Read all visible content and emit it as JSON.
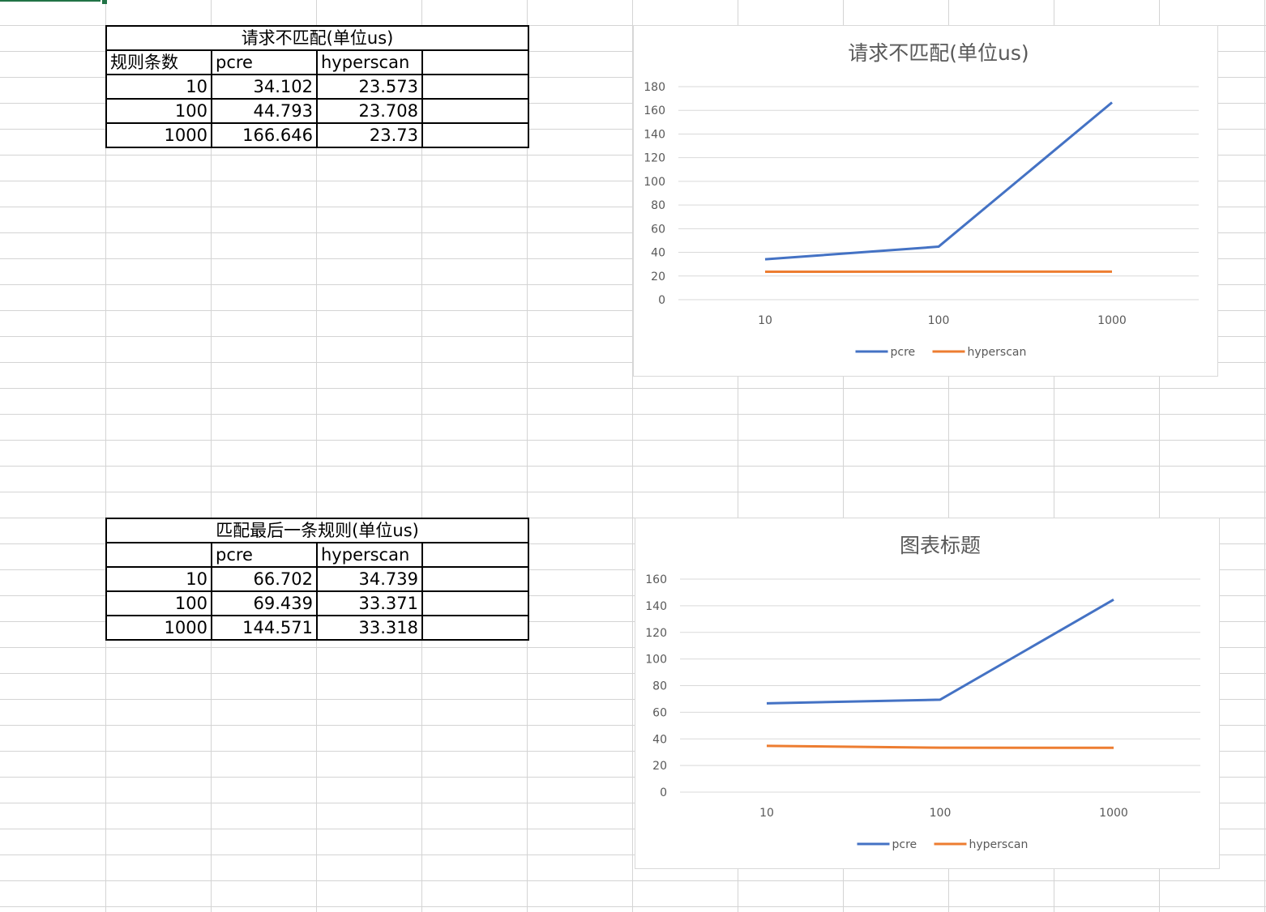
{
  "tables": [
    {
      "title": "请求不匹配(单位us)",
      "header": [
        "规则条数",
        "pcre",
        "hyperscan",
        ""
      ],
      "rows": [
        [
          "10",
          "34.102",
          "23.573",
          ""
        ],
        [
          "100",
          "44.793",
          "23.708",
          ""
        ],
        [
          "1000",
          "166.646",
          "23.73",
          ""
        ]
      ]
    },
    {
      "title": "匹配最后一条规则(单位us)",
      "header": [
        "",
        "pcre",
        "hyperscan",
        ""
      ],
      "rows": [
        [
          "10",
          "66.702",
          "34.739",
          ""
        ],
        [
          "100",
          "69.439",
          "33.371",
          ""
        ],
        [
          "1000",
          "144.571",
          "33.318",
          ""
        ]
      ]
    }
  ],
  "chart_data": [
    {
      "type": "line",
      "title": "请求不匹配(单位us)",
      "categories": [
        "10",
        "100",
        "1000"
      ],
      "series": [
        {
          "name": "pcre",
          "values": [
            34.102,
            44.793,
            166.646
          ],
          "color": "#4472C4"
        },
        {
          "name": "hyperscan",
          "values": [
            23.573,
            23.708,
            23.73
          ],
          "color": "#ED7D31"
        }
      ],
      "ylim": [
        0,
        180
      ],
      "yticks": [
        0,
        20,
        40,
        60,
        80,
        100,
        120,
        140,
        160,
        180
      ],
      "grid": true,
      "legend": "bottom"
    },
    {
      "type": "line",
      "title": "图表标题",
      "categories": [
        "10",
        "100",
        "1000"
      ],
      "series": [
        {
          "name": "pcre",
          "values": [
            66.702,
            69.439,
            144.571
          ],
          "color": "#4472C4"
        },
        {
          "name": "hyperscan",
          "values": [
            34.739,
            33.371,
            33.318
          ],
          "color": "#ED7D31"
        }
      ],
      "ylim": [
        0,
        160
      ],
      "yticks": [
        0,
        20,
        40,
        60,
        80,
        100,
        120,
        140,
        160
      ],
      "grid": true,
      "legend": "bottom"
    }
  ]
}
